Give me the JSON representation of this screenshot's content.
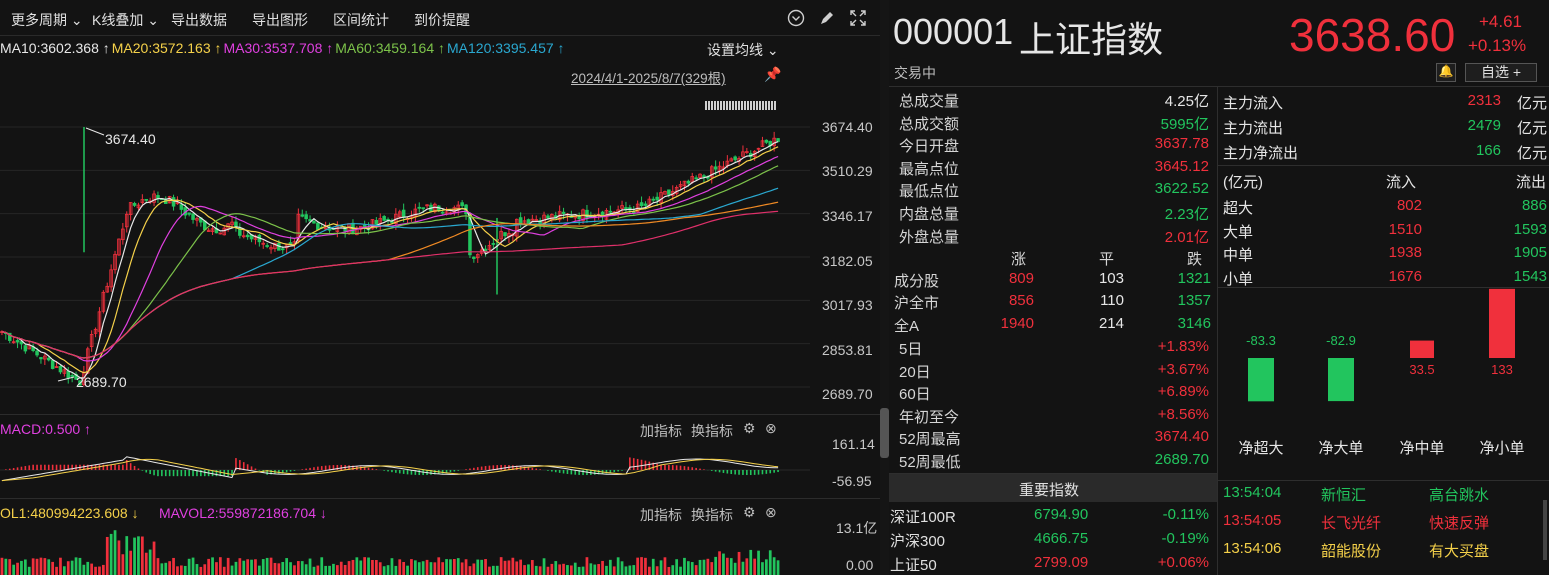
{
  "toolbar": {
    "items": [
      "更多周期",
      "K线叠加",
      "导出数据",
      "导出图形",
      "区间统计",
      "到价提醒"
    ]
  },
  "ma": [
    {
      "label": "MA10:3602.368",
      "color": "#e8e8e8",
      "arrow": "↑"
    },
    {
      "label": "MA20:3572.163",
      "color": "#f5d14a",
      "arrow": "↑"
    },
    {
      "label": "MA30:3537.708",
      "color": "#e040e0",
      "arrow": "↑"
    },
    {
      "label": "MA60:3459.164",
      "color": "#7cc24a",
      "arrow": "↑"
    },
    {
      "label": "MA120:3395.457",
      "color": "#2aa8d0",
      "arrow": "↑"
    }
  ],
  "ma_settings": "设置均线",
  "range_text": "2024/4/1-2025/8/7(329根)",
  "yaxis": [
    "3674.40",
    "3510.29",
    "3346.17",
    "3182.05",
    "3017.93",
    "2853.81",
    "2689.70"
  ],
  "high_marker": "3674.40",
  "low_marker": "2689.70",
  "macd": {
    "label": "MACD:0.500",
    "arrow": "↑",
    "y_top": "161.14",
    "y_bottom": "-56.95",
    "add": "加指标",
    "switch": "换指标"
  },
  "vol": {
    "label1": "OL1:480994223.608",
    "arrow1": "↓",
    "label2": "MAVOL2:559872186.704",
    "arrow2": "↓",
    "y_top": "13.1亿",
    "y_bottom": "0.00",
    "add": "加指标",
    "switch": "换指标"
  },
  "stock": {
    "code": "000001",
    "name": "上证指数",
    "price": "3638.60",
    "change": "+4.61",
    "change_pct": "+0.13%",
    "status": "交易中",
    "watch_btn": "自选 +"
  },
  "stats": [
    {
      "k": "总成交量",
      "v": "4.25亿",
      "c": "white"
    },
    {
      "k": "总成交额",
      "v": "5995亿",
      "c": "green"
    },
    {
      "k": "今日开盘",
      "v": "3637.78",
      "c": "red"
    },
    {
      "k": "最高点位",
      "v": "3645.12",
      "c": "red"
    },
    {
      "k": "最低点位",
      "v": "3622.52",
      "c": "green"
    },
    {
      "k": "内盘总量",
      "v": "2.23亿",
      "c": "green"
    },
    {
      "k": "外盘总量",
      "v": "2.01亿",
      "c": "red"
    }
  ],
  "breadth": {
    "headers": [
      "涨",
      "平",
      "跌"
    ],
    "rows": [
      {
        "k": "成分股",
        "up": "809",
        "flat": "103",
        "down": "1321"
      },
      {
        "k": "沪全市",
        "up": "856",
        "flat": "110",
        "down": "1357"
      },
      {
        "k": "全A",
        "up": "1940",
        "flat": "214",
        "down": "3146"
      }
    ]
  },
  "perf": [
    {
      "k": "5日",
      "v": "+1.83%",
      "c": "red"
    },
    {
      "k": "20日",
      "v": "+3.67%",
      "c": "red"
    },
    {
      "k": "60日",
      "v": "+6.89%",
      "c": "red"
    },
    {
      "k": "年初至今",
      "v": "+8.56%",
      "c": "red"
    },
    {
      "k": "52周最高",
      "v": "3674.40",
      "c": "red"
    },
    {
      "k": "52周最低",
      "v": "2689.70",
      "c": "green"
    }
  ],
  "important": {
    "title": "重要指数",
    "rows": [
      {
        "name": "深证100R",
        "value": "6794.90",
        "chg": "-0.11%",
        "vc": "green",
        "cc": "green"
      },
      {
        "name": "沪深300",
        "value": "4666.75",
        "chg": "-0.19%",
        "vc": "green",
        "cc": "green"
      },
      {
        "name": "上证50",
        "value": "2799.09",
        "chg": "+0.06%",
        "vc": "red",
        "cc": "red"
      }
    ]
  },
  "fund": {
    "rows": [
      {
        "k": "主力流入",
        "v": "2313",
        "unit": "亿元",
        "c": "red"
      },
      {
        "k": "主力流出",
        "v": "2479",
        "unit": "亿元",
        "c": "green"
      },
      {
        "k": "主力净流出",
        "v": "166",
        "unit": "亿元",
        "c": "green"
      }
    ],
    "table_head": [
      "(亿元)",
      "流入",
      "流出"
    ],
    "table": [
      {
        "k": "超大",
        "in": "802",
        "out": "886"
      },
      {
        "k": "大单",
        "in": "1510",
        "out": "1593"
      },
      {
        "k": "中单",
        "in": "1938",
        "out": "1905"
      },
      {
        "k": "小单",
        "in": "1676",
        "out": "1543"
      }
    ]
  },
  "netflow": {
    "categories": [
      "净超大",
      "净大单",
      "净中单",
      "净小单"
    ],
    "values": [
      -83.3,
      -82.9,
      33.5,
      133
    ],
    "labels": [
      "-83.3",
      "-82.9",
      "33.5",
      "133"
    ]
  },
  "ticks": [
    {
      "time": "13:54:04",
      "name": "新恒汇",
      "event": "高台跳水"
    },
    {
      "time": "13:54:05",
      "name": "长飞光纤",
      "event": "快速反弹"
    },
    {
      "time": "13:54:06",
      "name": "韶能股份",
      "event": "有大买盘"
    }
  ],
  "colors": {
    "up": "#f0303c",
    "down": "#22c55e",
    "bg": "#131313"
  }
}
